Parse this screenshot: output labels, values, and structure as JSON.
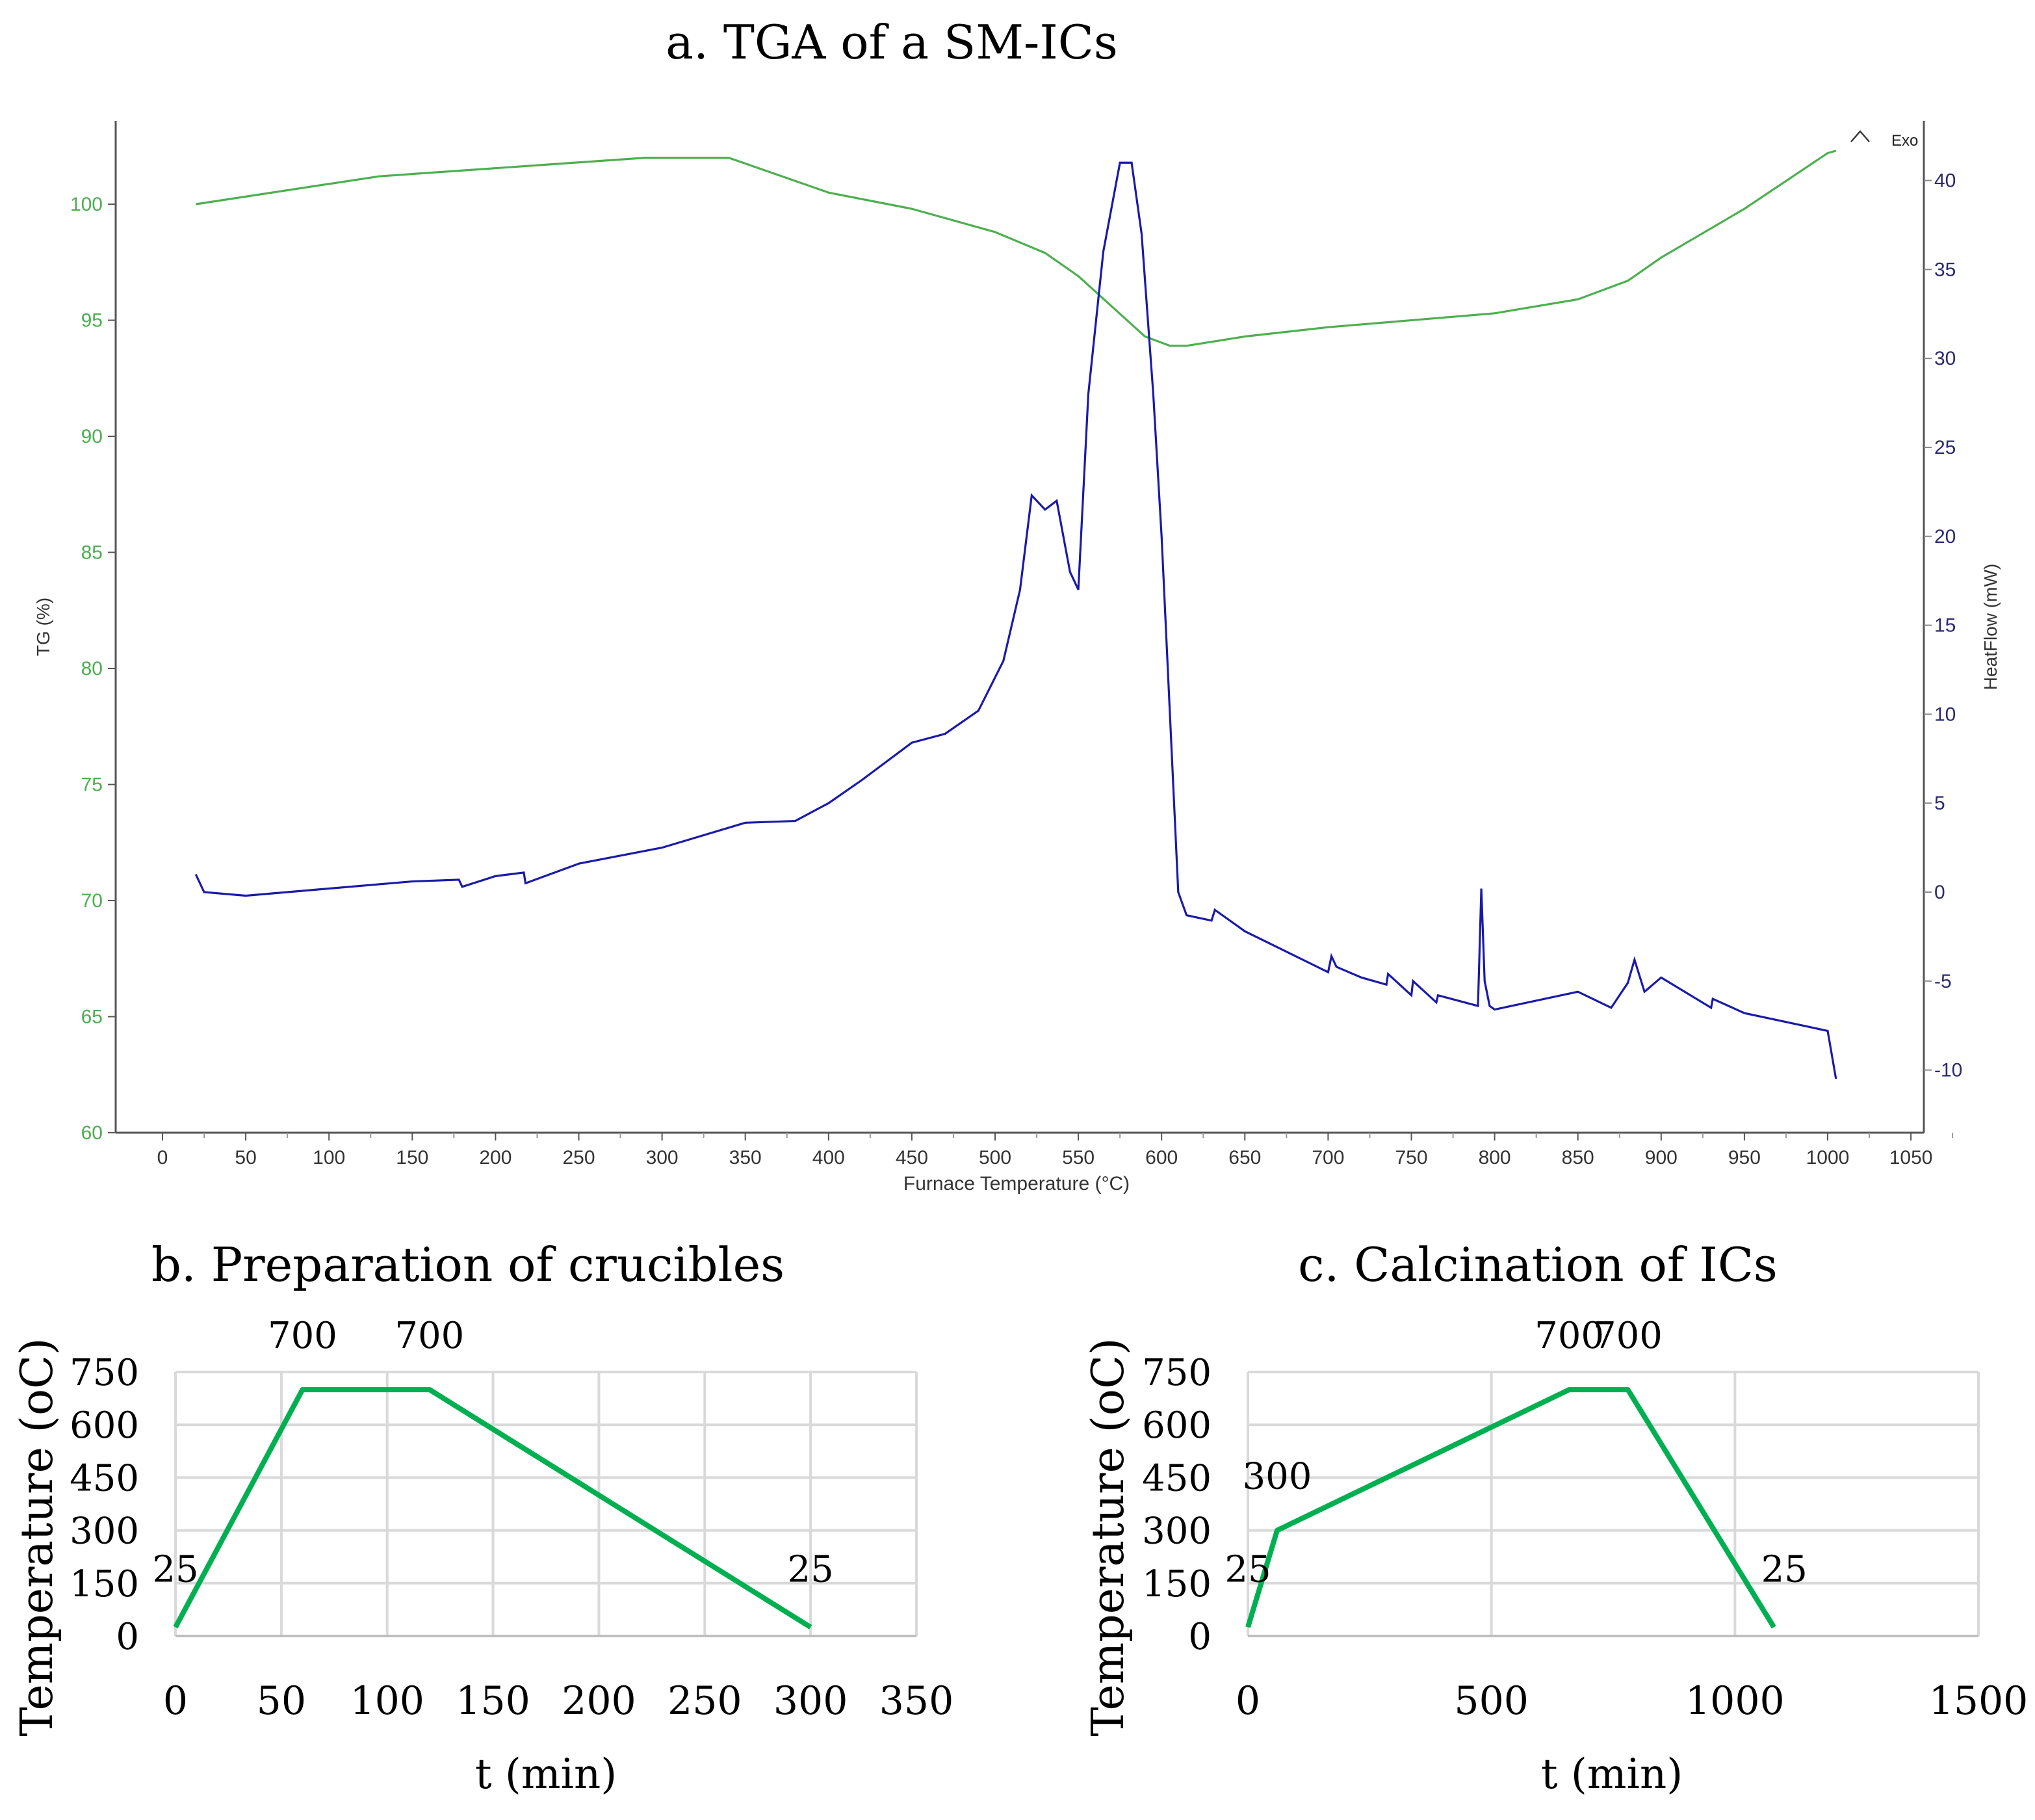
{
  "chart_data": [
    {
      "type": "line",
      "title": "a. TGA of a SM-ICs",
      "xlabel": "Furnace Temperature (°C)",
      "ylabel": "TG (%)",
      "y2label": "HeatFlow (mW)",
      "exo_label": "Exo",
      "xlim": [
        -25,
        1060
      ],
      "ylim": [
        60,
        104
      ],
      "y2lim": [
        -12,
        42.5
      ],
      "xticks": [
        0,
        50,
        100,
        150,
        200,
        250,
        300,
        350,
        400,
        450,
        500,
        550,
        600,
        650,
        700,
        750,
        800,
        850,
        900,
        950,
        1000,
        1050
      ],
      "yticks": [
        60,
        65,
        70,
        75,
        80,
        85,
        90,
        95,
        100
      ],
      "y2ticks": [
        -10,
        -5,
        0,
        5,
        10,
        15,
        20,
        25,
        30,
        35,
        40
      ],
      "colors": {
        "tg": "#4caf50",
        "heatflow": "#1a1aa8",
        "tg_axis": "#4caf50",
        "hf_axis": "#2a2a70"
      },
      "series": [
        {
          "name": "TG (%)",
          "axis": "left",
          "x": [
            20,
            130,
            290,
            340,
            400,
            450,
            500,
            530,
            550,
            570,
            590,
            605,
            615,
            650,
            700,
            800,
            850,
            880,
            900,
            950,
            1000,
            1005
          ],
          "y": [
            100,
            101.2,
            102,
            102,
            100.5,
            99.8,
            98.8,
            97.9,
            96.9,
            95.6,
            94.3,
            93.9,
            93.9,
            94.3,
            94.7,
            95.3,
            95.9,
            96.7,
            97.7,
            99.8,
            102.2,
            102.3
          ]
        },
        {
          "name": "HeatFlow (mW)",
          "axis": "right",
          "x": [
            20,
            25,
            50,
            100,
            150,
            178,
            180,
            200,
            217,
            218,
            250,
            300,
            350,
            380,
            400,
            420,
            450,
            470,
            490,
            505,
            515,
            522,
            530,
            537,
            545,
            550,
            556,
            565,
            575,
            582,
            588,
            595,
            600,
            605,
            610,
            615,
            630,
            632,
            650,
            700,
            702,
            705,
            720,
            735,
            736,
            750,
            751,
            765,
            766,
            790,
            792,
            794,
            797,
            800,
            850,
            870,
            880,
            884,
            890,
            900,
            930,
            931,
            950,
            1000,
            1005
          ],
          "y": [
            1,
            0,
            -0.2,
            0.2,
            0.6,
            0.7,
            0.3,
            0.9,
            1.1,
            0.5,
            1.6,
            2.5,
            3.9,
            4,
            5,
            6.3,
            8.4,
            8.9,
            10.2,
            13,
            17,
            22.3,
            21.5,
            22,
            18,
            17,
            28,
            36,
            41,
            41,
            37,
            28,
            20,
            10,
            0,
            -1.3,
            -1.6,
            -1,
            -2.2,
            -4.5,
            -3.6,
            -4.2,
            -4.8,
            -5.2,
            -4.6,
            -5.8,
            -5,
            -6.2,
            -5.8,
            -6.4,
            0.2,
            -5,
            -6.4,
            -6.6,
            -5.6,
            -6.5,
            -5.1,
            -3.8,
            -5.6,
            -4.8,
            -6.5,
            -6,
            -6.8,
            -7.8,
            -10.5
          ]
        }
      ]
    },
    {
      "type": "line",
      "title": "b. Preparation of crucibles",
      "xlabel": "t (min)",
      "ylabel": "Temperature (oC)",
      "xlim": [
        0,
        350
      ],
      "ylim": [
        0,
        750
      ],
      "xticks": [
        0,
        50,
        100,
        150,
        200,
        250,
        300,
        350
      ],
      "yticks": [
        0,
        150,
        300,
        450,
        600,
        750
      ],
      "grid": true,
      "color": "#00b050",
      "x": [
        0,
        60,
        120,
        300
      ],
      "y": [
        25,
        700,
        700,
        25
      ],
      "data_labels": [
        "25",
        "700",
        "700",
        "25"
      ]
    },
    {
      "type": "line",
      "title": "c. Calcination of ICs",
      "xlabel": "t (min)",
      "ylabel": "Temperature (oC)",
      "xlim": [
        0,
        1500
      ],
      "ylim": [
        0,
        750
      ],
      "xticks": [
        0,
        500,
        1000,
        1500
      ],
      "yticks": [
        0,
        150,
        300,
        450,
        600,
        750
      ],
      "grid": true,
      "color": "#00b050",
      "x": [
        0,
        60,
        660,
        780,
        1080
      ],
      "y": [
        25,
        300,
        700,
        700,
        25
      ],
      "data_labels": [
        "25",
        "300",
        "700",
        "700",
        "25"
      ]
    }
  ]
}
